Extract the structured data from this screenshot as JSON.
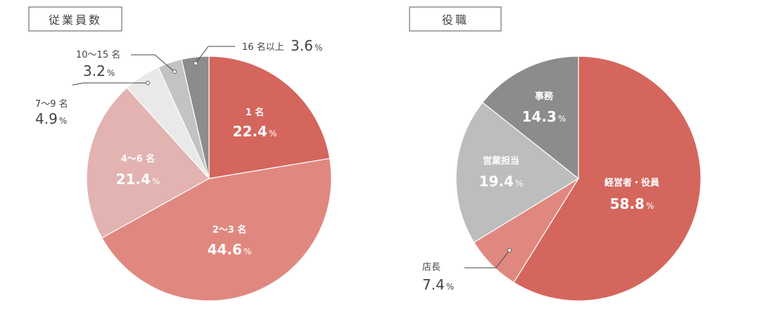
{
  "chart_data": [
    {
      "type": "pie",
      "title": "従業員数",
      "unit": "%",
      "categories": [
        "1 名",
        "2〜3 名",
        "4〜6 名",
        "7〜9 名",
        "10〜15 名",
        "16 名以上"
      ],
      "values": [
        22.4,
        44.6,
        21.4,
        4.9,
        3.2,
        3.6
      ],
      "colors": [
        "#d4665d",
        "#e08880",
        "#e2b3b0",
        "#e9e9e9",
        "#c3c3c3",
        "#8c8c8c"
      ],
      "start": "12 o'clock, clockwise",
      "legend": "none"
    },
    {
      "type": "pie",
      "title": "役職",
      "unit": "%",
      "categories": [
        "経営者・役員",
        "店長",
        "営業担当",
        "事務"
      ],
      "values": [
        58.8,
        7.4,
        19.4,
        14.3
      ],
      "colors": [
        "#d4665d",
        "#e08880",
        "#bdbdbd",
        "#8c8c8c"
      ],
      "start": "12 o'clock, clockwise",
      "legend": "none"
    }
  ]
}
